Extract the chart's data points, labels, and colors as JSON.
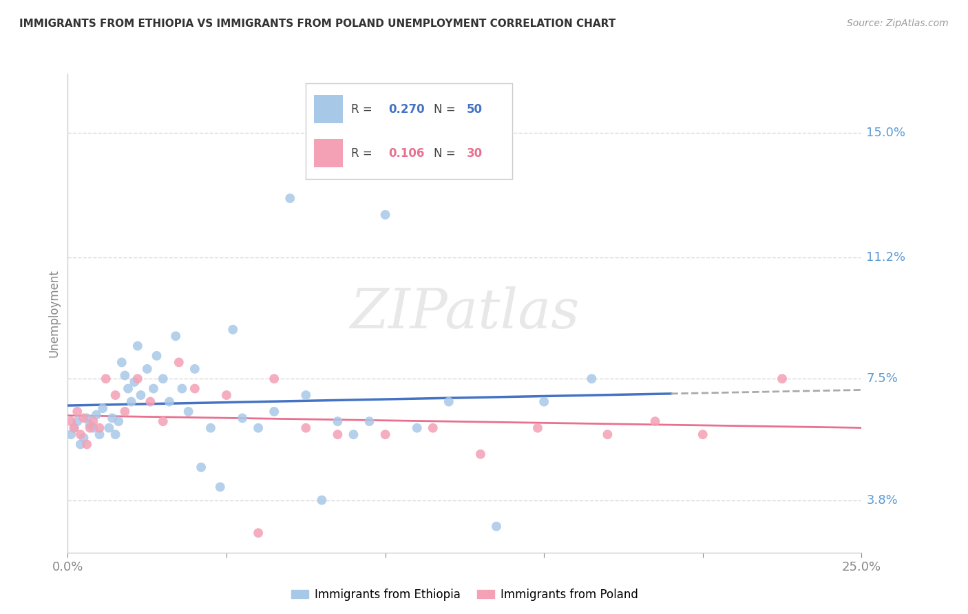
{
  "title": "IMMIGRANTS FROM ETHIOPIA VS IMMIGRANTS FROM POLAND UNEMPLOYMENT CORRELATION CHART",
  "source": "Source: ZipAtlas.com",
  "ylabel": "Unemployment",
  "ytick_labels": [
    "15.0%",
    "11.2%",
    "7.5%",
    "3.8%"
  ],
  "ytick_values": [
    0.15,
    0.112,
    0.075,
    0.038
  ],
  "xlim": [
    0.0,
    0.25
  ],
  "ylim": [
    0.022,
    0.168
  ],
  "ethiopia_color": "#A8C8E8",
  "poland_color": "#F4A0B5",
  "ethiopia_line_color": "#4472C4",
  "poland_line_color": "#E87090",
  "watermark": "ZIPatlas",
  "background_color": "#FFFFFF",
  "grid_color": "#D8D8D8",
  "ethiopia_x": [
    0.001,
    0.002,
    0.003,
    0.004,
    0.005,
    0.006,
    0.007,
    0.008,
    0.009,
    0.01,
    0.011,
    0.013,
    0.014,
    0.015,
    0.016,
    0.017,
    0.018,
    0.019,
    0.02,
    0.021,
    0.022,
    0.023,
    0.025,
    0.027,
    0.028,
    0.03,
    0.032,
    0.034,
    0.036,
    0.038,
    0.04,
    0.042,
    0.045,
    0.048,
    0.052,
    0.055,
    0.06,
    0.065,
    0.07,
    0.075,
    0.08,
    0.085,
    0.09,
    0.095,
    0.1,
    0.11,
    0.12,
    0.135,
    0.15,
    0.165
  ],
  "ethiopia_y": [
    0.058,
    0.06,
    0.062,
    0.055,
    0.057,
    0.063,
    0.061,
    0.06,
    0.064,
    0.058,
    0.066,
    0.06,
    0.063,
    0.058,
    0.062,
    0.08,
    0.076,
    0.072,
    0.068,
    0.074,
    0.085,
    0.07,
    0.078,
    0.072,
    0.082,
    0.075,
    0.068,
    0.088,
    0.072,
    0.065,
    0.078,
    0.048,
    0.06,
    0.042,
    0.09,
    0.063,
    0.06,
    0.065,
    0.13,
    0.07,
    0.038,
    0.062,
    0.058,
    0.062,
    0.125,
    0.06,
    0.068,
    0.03,
    0.068,
    0.075
  ],
  "poland_x": [
    0.001,
    0.002,
    0.003,
    0.004,
    0.005,
    0.006,
    0.007,
    0.008,
    0.01,
    0.012,
    0.015,
    0.018,
    0.022,
    0.026,
    0.03,
    0.035,
    0.04,
    0.05,
    0.06,
    0.065,
    0.075,
    0.085,
    0.1,
    0.115,
    0.13,
    0.148,
    0.17,
    0.185,
    0.2,
    0.225
  ],
  "poland_y": [
    0.062,
    0.06,
    0.065,
    0.058,
    0.063,
    0.055,
    0.06,
    0.062,
    0.06,
    0.075,
    0.07,
    0.065,
    0.075,
    0.068,
    0.062,
    0.08,
    0.072,
    0.07,
    0.028,
    0.075,
    0.06,
    0.058,
    0.058,
    0.06,
    0.052,
    0.06,
    0.058,
    0.062,
    0.058,
    0.075
  ]
}
